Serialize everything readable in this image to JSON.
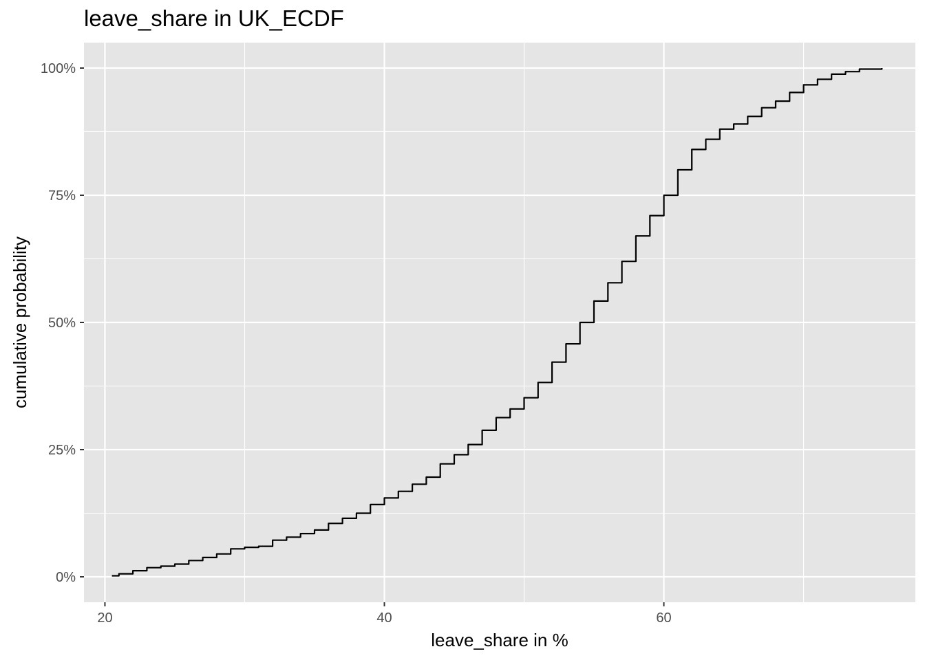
{
  "chart_data": {
    "type": "line",
    "step": true,
    "title": "leave_share in UK_ECDF",
    "xlabel": "leave_share in %",
    "ylabel": "cumulative probability",
    "xlim": [
      18.5,
      78
    ],
    "ylim": [
      -0.05,
      1.05
    ],
    "x_ticks": [
      20,
      40,
      60
    ],
    "x_tick_labels": [
      "20",
      "40",
      "60"
    ],
    "x_minor_ticks": [
      30,
      50,
      70
    ],
    "y_ticks": [
      0,
      0.25,
      0.5,
      0.75,
      1.0
    ],
    "y_tick_labels": [
      "0%",
      "25%",
      "50%",
      "75%",
      "100%"
    ],
    "y_minor_ticks": [
      0.125,
      0.375,
      0.625,
      0.875
    ],
    "grid": true,
    "panel_color": "#e5e5e5",
    "grid_color": "#ffffff",
    "line_color": "#000000",
    "series": [
      {
        "x": [
          20.5,
          21.0,
          22.0,
          23.0,
          24.0,
          25.0,
          26.0,
          27.0,
          28.0,
          29.0,
          30.0,
          31.0,
          32.0,
          33.0,
          34.0,
          35.0,
          36.0,
          37.0,
          38.0,
          39.0,
          40.0,
          41.0,
          42.0,
          43.0,
          44.0,
          45.0,
          46.0,
          47.0,
          48.0,
          49.0,
          50.0,
          51.0,
          52.0,
          53.0,
          54.0,
          55.0,
          56.0,
          57.0,
          58.0,
          59.0,
          60.0,
          61.0,
          62.0,
          63.0,
          64.0,
          65.0,
          66.0,
          67.0,
          68.0,
          69.0,
          70.0,
          71.0,
          72.0,
          73.0,
          74.0,
          75.6
        ],
        "y": [
          0.002,
          0.006,
          0.012,
          0.018,
          0.021,
          0.025,
          0.032,
          0.038,
          0.045,
          0.055,
          0.058,
          0.06,
          0.072,
          0.078,
          0.085,
          0.092,
          0.105,
          0.115,
          0.125,
          0.142,
          0.155,
          0.168,
          0.182,
          0.196,
          0.222,
          0.24,
          0.26,
          0.288,
          0.313,
          0.33,
          0.352,
          0.382,
          0.422,
          0.458,
          0.5,
          0.542,
          0.578,
          0.62,
          0.67,
          0.71,
          0.75,
          0.8,
          0.84,
          0.86,
          0.88,
          0.89,
          0.905,
          0.922,
          0.935,
          0.952,
          0.967,
          0.978,
          0.988,
          0.993,
          0.998,
          1.0
        ]
      }
    ]
  }
}
